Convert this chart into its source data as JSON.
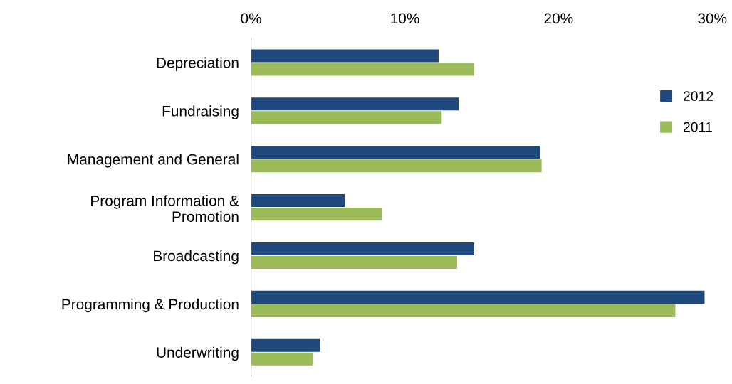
{
  "chart_data": {
    "type": "bar",
    "orientation": "horizontal",
    "categories": [
      "Depreciation",
      "Fundraising",
      "Management and General",
      "Program Information &\nPromotion",
      "Broadcasting",
      "Programming & Production",
      "Underwriting"
    ],
    "series": [
      {
        "name": "2012",
        "color": "#1f497d",
        "values": [
          12.2,
          13.5,
          18.8,
          6.1,
          14.5,
          29.5,
          4.5
        ]
      },
      {
        "name": "2011",
        "color": "#9bbb59",
        "values": [
          14.5,
          12.4,
          18.9,
          8.5,
          13.4,
          27.6,
          4.0
        ]
      }
    ],
    "xlim": [
      0,
      30
    ],
    "xticks": [
      {
        "value": 0,
        "label": "0%"
      },
      {
        "value": 10,
        "label": "10%"
      },
      {
        "value": 20,
        "label": "20%"
      },
      {
        "value": 30,
        "label": "30%"
      }
    ],
    "grid": false,
    "legend": "right"
  }
}
